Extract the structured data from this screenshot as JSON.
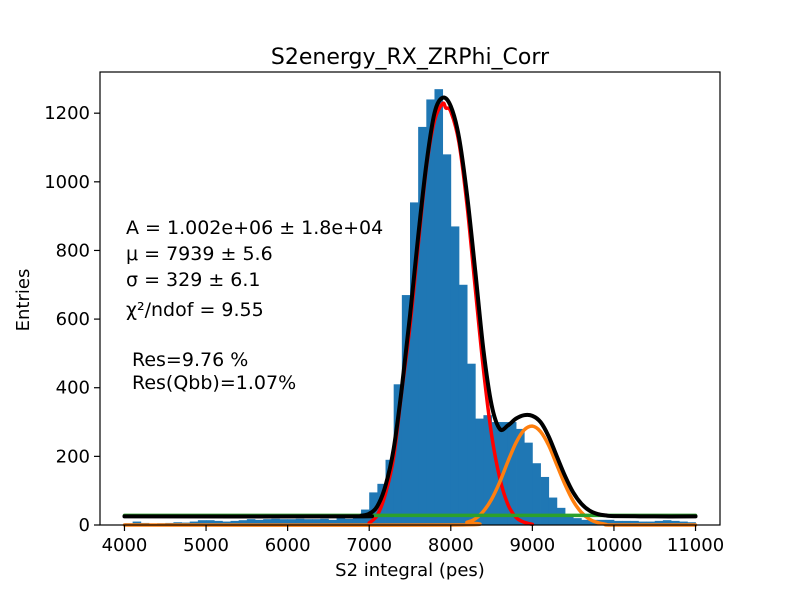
{
  "chart_data": {
    "type": "bar",
    "title": "S2energy_RX_ZRPhi_Corr",
    "xlabel": "S2 integral (pes)",
    "ylabel": "Entries",
    "xlim": [
      3700,
      11300
    ],
    "ylim": [
      0,
      1320
    ],
    "x_ticks": [
      4000,
      5000,
      6000,
      7000,
      8000,
      9000,
      10000,
      11000
    ],
    "y_ticks": [
      0,
      200,
      400,
      600,
      800,
      1000,
      1200
    ],
    "histogram": {
      "color": "#1f77b4",
      "bin_width": 100,
      "bin_starts": [
        4000,
        4100,
        4200,
        4300,
        4400,
        4500,
        4600,
        4700,
        4800,
        4900,
        5000,
        5100,
        5200,
        5300,
        5400,
        5500,
        5600,
        5700,
        5800,
        5900,
        6000,
        6100,
        6200,
        6300,
        6400,
        6500,
        6600,
        6700,
        6800,
        6900,
        7000,
        7100,
        7200,
        7300,
        7400,
        7500,
        7600,
        7700,
        7800,
        7900,
        8000,
        8100,
        8200,
        8300,
        8400,
        8500,
        8600,
        8700,
        8800,
        8900,
        9000,
        9100,
        9200,
        9300,
        9400,
        9500,
        9600,
        9700,
        9800,
        9900,
        10000,
        10100,
        10200,
        10300,
        10400,
        10500,
        10600,
        10700,
        10800,
        10900
      ],
      "values": [
        5,
        10,
        6,
        4,
        5,
        6,
        8,
        7,
        10,
        14,
        14,
        12,
        10,
        12,
        14,
        17,
        15,
        17,
        18,
        17,
        17,
        18,
        17,
        17,
        18,
        15,
        20,
        18,
        22,
        45,
        95,
        120,
        190,
        410,
        670,
        940,
        1160,
        1240,
        1270,
        1080,
        870,
        700,
        470,
        310,
        320,
        300,
        300,
        300,
        280,
        240,
        180,
        140,
        80,
        50,
        30,
        20,
        15,
        15,
        15,
        15,
        12,
        12,
        12,
        10,
        10,
        12,
        14,
        12,
        10,
        8
      ]
    },
    "series": [
      {
        "color": "#ff0000",
        "points": [
          [
            7000,
            6
          ],
          [
            7100,
            29
          ],
          [
            7200,
            92
          ],
          [
            7300,
            198
          ],
          [
            7400,
            392
          ],
          [
            7500,
            580
          ],
          [
            7600,
            814
          ],
          [
            7700,
            1040
          ],
          [
            7800,
            1178
          ],
          [
            7900,
            1228
          ],
          [
            7939,
            1215
          ],
          [
            8000,
            1205
          ],
          [
            8100,
            1115
          ],
          [
            8200,
            930
          ],
          [
            8300,
            690
          ],
          [
            8400,
            454
          ],
          [
            8500,
            263
          ],
          [
            8600,
            137
          ],
          [
            8700,
            60
          ],
          [
            8800,
            22
          ],
          [
            8900,
            8
          ],
          [
            9000,
            2
          ]
        ]
      },
      {
        "color": "#ff7f0e",
        "points": [
          [
            4000,
            0
          ],
          [
            8000,
            0
          ],
          [
            8200,
            8
          ],
          [
            8300,
            18
          ],
          [
            8400,
            40
          ],
          [
            8500,
            75
          ],
          [
            8600,
            125
          ],
          [
            8700,
            185
          ],
          [
            8800,
            240
          ],
          [
            8900,
            277
          ],
          [
            9000,
            288
          ],
          [
            9100,
            272
          ],
          [
            9200,
            232
          ],
          [
            9300,
            175
          ],
          [
            9400,
            118
          ],
          [
            9500,
            70
          ],
          [
            9600,
            37
          ],
          [
            9700,
            17
          ],
          [
            9800,
            7
          ],
          [
            9900,
            2
          ],
          [
            10000,
            0
          ],
          [
            11000,
            0
          ]
        ]
      },
      {
        "color": "#2ca02c",
        "points": [
          [
            4000,
            28
          ],
          [
            11000,
            28
          ]
        ]
      },
      {
        "color": "#000000",
        "points": [
          [
            4000,
            25
          ],
          [
            6800,
            25
          ],
          [
            6900,
            27
          ],
          [
            7000,
            33
          ],
          [
            7100,
            55
          ],
          [
            7200,
            115
          ],
          [
            7300,
            222
          ],
          [
            7400,
            400
          ],
          [
            7500,
            610
          ],
          [
            7600,
            840
          ],
          [
            7700,
            1050
          ],
          [
            7800,
            1200
          ],
          [
            7900,
            1245
          ],
          [
            8000,
            1220
          ],
          [
            8100,
            1130
          ],
          [
            8200,
            960
          ],
          [
            8300,
            740
          ],
          [
            8400,
            510
          ],
          [
            8500,
            350
          ],
          [
            8600,
            280
          ],
          [
            8700,
            290
          ],
          [
            8800,
            310
          ],
          [
            8900,
            320
          ],
          [
            9000,
            318
          ],
          [
            9100,
            300
          ],
          [
            9200,
            258
          ],
          [
            9300,
            200
          ],
          [
            9400,
            143
          ],
          [
            9500,
            95
          ],
          [
            9600,
            62
          ],
          [
            9700,
            42
          ],
          [
            9800,
            32
          ],
          [
            9900,
            28
          ],
          [
            10000,
            26
          ],
          [
            10500,
            25
          ],
          [
            11000,
            25
          ]
        ]
      }
    ],
    "annotations": [
      "A = 1.002e+06 ± 1.8e+04",
      "μ = 7939 ± 5.6",
      "σ = 329 ± 6.1",
      "χ²/ndof = 9.55",
      "Res=9.76 %",
      "Res(Qbb)=1.07%"
    ]
  }
}
